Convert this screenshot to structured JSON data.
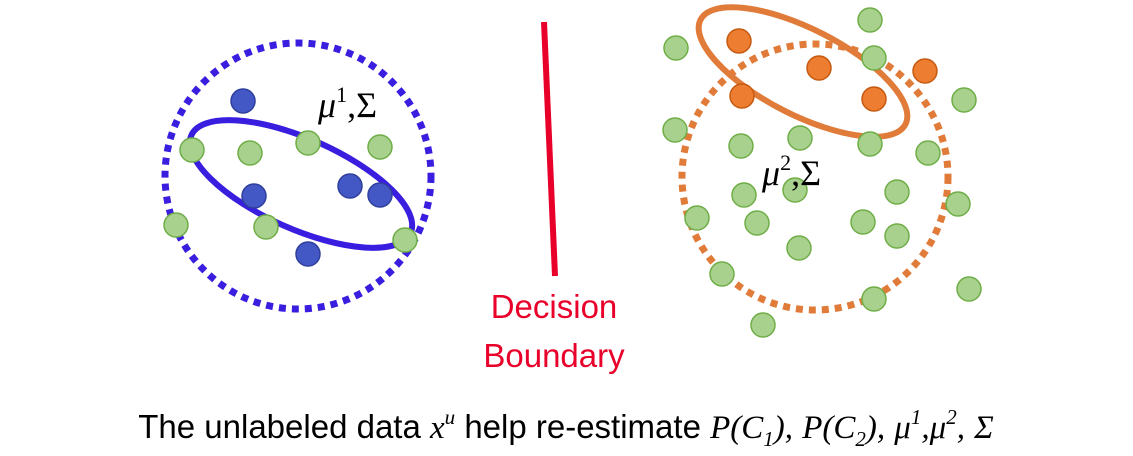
{
  "colors": {
    "green_fill": "#a9d18e",
    "green_stroke": "#6fae47",
    "blue_fill": "#4358c4",
    "blue_stroke": "#2f3f9e",
    "orange_fill": "#ed7d31",
    "orange_stroke": "#c55a11",
    "blue_line": "#3a1ee0",
    "orange_line": "#e07b39",
    "red": "#e8002a"
  },
  "left_cluster": {
    "mu_sup": "1",
    "sigma": "Σ"
  },
  "right_cluster": {
    "mu_sup": "2",
    "sigma": "Σ"
  },
  "decision_boundary": {
    "line1": "Decision",
    "line2": "Boundary"
  },
  "caption": {
    "prefix": "The unlabeled data",
    "x_var": "x",
    "x_sup": "u",
    "middle": "help re-estimate",
    "p1": "P(C",
    "p1_sub": "1",
    "p1_close": "),",
    "p2": "P(C",
    "p2_sub": "2",
    "p2_close": "),",
    "mu1": "μ",
    "mu1_sup": "1",
    "comma1": ",",
    "mu2": "μ",
    "mu2_sup": "2",
    "comma2": ",",
    "sigma": "Σ"
  }
}
